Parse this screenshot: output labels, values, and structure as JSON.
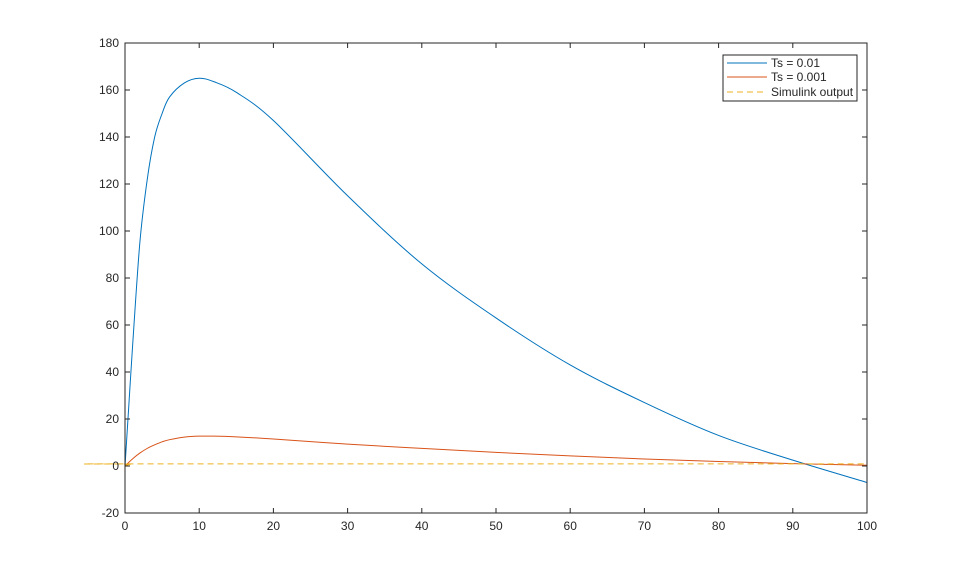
{
  "chart_data": {
    "type": "line",
    "title": "",
    "xlabel": "",
    "ylabel": "",
    "xlim": [
      0,
      100
    ],
    "ylim": [
      -20,
      180
    ],
    "xticks": [
      0,
      10,
      20,
      30,
      40,
      50,
      60,
      70,
      80,
      90,
      100
    ],
    "yticks": [
      -20,
      0,
      20,
      40,
      60,
      80,
      100,
      120,
      140,
      160,
      180
    ],
    "grid": false,
    "legend_position": "top-right",
    "series": [
      {
        "name": "Ts = 0.01",
        "color": "#0072BD",
        "style": "solid",
        "x": [
          0,
          0.5,
          1,
          2,
          3,
          4,
          5,
          6,
          8,
          10,
          12,
          15,
          20,
          30,
          40,
          50,
          60,
          70,
          80,
          90,
          100
        ],
        "y": [
          0,
          25,
          50,
          95,
          122,
          140,
          150,
          157,
          163,
          165,
          163.5,
          159,
          147,
          115,
          86,
          63,
          43,
          27,
          13,
          2.5,
          -7
        ]
      },
      {
        "name": "Ts = 0.001",
        "color": "#D95319",
        "style": "solid",
        "x": [
          0,
          1,
          2,
          3,
          4,
          5,
          6,
          8,
          10,
          12,
          15,
          20,
          30,
          40,
          50,
          60,
          70,
          80,
          90,
          100
        ],
        "y": [
          0,
          3,
          5.5,
          7.5,
          9,
          10.3,
          11.2,
          12.3,
          12.7,
          12.7,
          12.4,
          11.5,
          9.3,
          7.5,
          5.8,
          4.3,
          3,
          1.9,
          1,
          0.3
        ]
      },
      {
        "name": "Simulink output",
        "color": "#EDB120",
        "style": "dashed",
        "x": [
          0,
          0.5,
          1,
          2,
          100
        ],
        "y": [
          0,
          0.6,
          0.8,
          0.9,
          0.9
        ]
      }
    ]
  }
}
